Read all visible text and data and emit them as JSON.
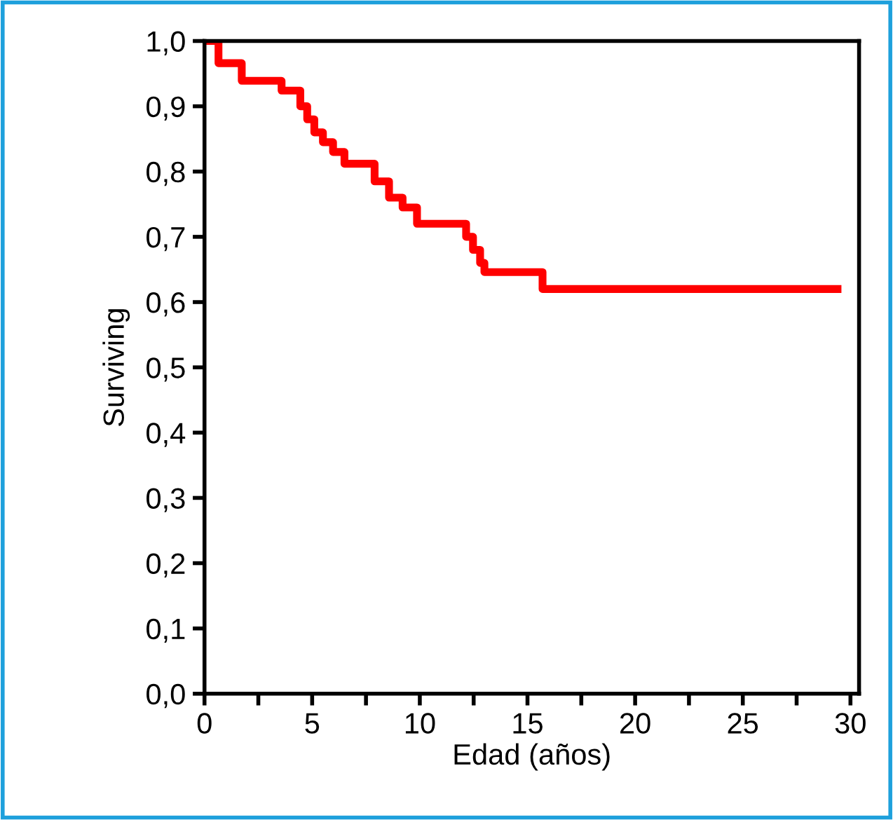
{
  "chart_data": {
    "type": "step",
    "xlabel": "Edad (años)",
    "ylabel": "Surviving",
    "x": [
      0,
      0.65,
      1.73,
      3.58,
      4.45,
      4.77,
      5.1,
      5.5,
      5.97,
      6.5,
      7.9,
      8.57,
      9.2,
      9.87,
      12.15,
      12.47,
      12.8,
      13.0,
      15.7,
      29.4
    ],
    "series": [
      {
        "color": "#ff0000",
        "values": [
          1.0,
          0.966,
          0.939,
          0.924,
          0.9,
          0.88,
          0.86,
          0.845,
          0.83,
          0.812,
          0.785,
          0.76,
          0.745,
          0.72,
          0.7,
          0.68,
          0.66,
          0.646,
          0.62,
          0.62
        ]
      }
    ],
    "xlim": [
      0,
      30.4
    ],
    "xticks": [
      0,
      {
        "value": 2.5,
        "label": null
      },
      5,
      {
        "value": 7.5,
        "label": null
      },
      10,
      {
        "value": 12.5,
        "label": null
      },
      15,
      {
        "value": 17.5,
        "label": null
      },
      20,
      {
        "value": 22.5,
        "label": null
      },
      25,
      {
        "value": 27.5,
        "label": null
      },
      30
    ],
    "ylim": [
      0,
      1
    ],
    "yticks": [
      {
        "value": 0,
        "label": "0,0"
      },
      {
        "value": 0.1,
        "label": "0,1"
      },
      {
        "value": 0.2,
        "label": "0,2"
      },
      {
        "value": 0.3,
        "label": "0,3"
      },
      {
        "value": 0.4,
        "label": "0,4"
      },
      {
        "value": 0.5,
        "label": "0,5"
      },
      {
        "value": 0.6,
        "label": "0,6"
      },
      {
        "value": 0.7,
        "label": "0,7"
      },
      {
        "value": 0.8,
        "label": "0,8"
      },
      {
        "value": 0.9,
        "label": "0,9"
      },
      {
        "value": 1.0,
        "label": "1,0"
      }
    ],
    "grid": false
  }
}
